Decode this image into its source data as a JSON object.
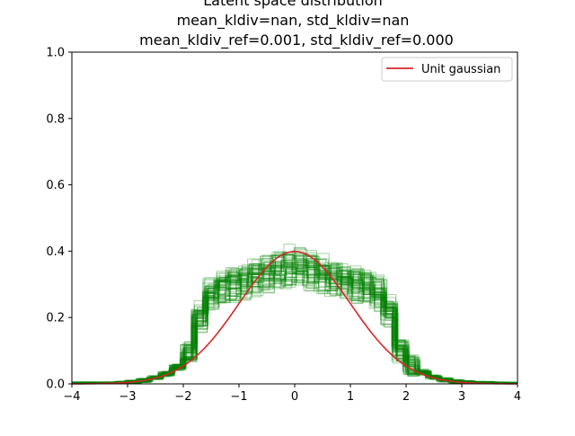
{
  "chart_data": {
    "type": "histogram",
    "title_lines": [
      "Latent space distribution",
      "mean_kldiv=nan, std_kldiv=nan",
      "mean_kldiv_ref=0.001, std_kldiv_ref=0.000"
    ],
    "xlim": [
      -4,
      4
    ],
    "ylim": [
      0,
      1.0
    ],
    "x_ticks": [
      -4,
      -3,
      -2,
      -1,
      0,
      1,
      2,
      3,
      4
    ],
    "x_tick_labels": [
      "−4",
      "−3",
      "−2",
      "−1",
      "0",
      "1",
      "2",
      "3",
      "4"
    ],
    "y_ticks": [
      0.0,
      0.2,
      0.4,
      0.6,
      0.8,
      1.0
    ],
    "y_tick_labels": [
      "0.0",
      "0.2",
      "0.4",
      "0.6",
      "0.8",
      "1.0"
    ],
    "grid": false,
    "legend_position": "top-right",
    "series": [
      {
        "name": "Unit gaussian",
        "kind": "line",
        "color": "#d62728",
        "function": "standard_normal_pdf",
        "x_range": [
          -4,
          4
        ]
      },
      {
        "kind": "step-histograms",
        "color": "#008000",
        "count_estimate": 64,
        "bins": [
          -4.0,
          -3.8,
          -3.6,
          -3.4,
          -3.2,
          -3.0,
          -2.8,
          -2.6,
          -2.4,
          -2.2,
          -2.0,
          -1.8,
          -1.6,
          -1.4,
          -1.2,
          -1.0,
          -0.8,
          -0.6,
          -0.4,
          -0.2,
          0.0,
          0.2,
          0.4,
          0.6,
          0.8,
          1.0,
          1.2,
          1.4,
          1.6,
          1.8,
          2.0,
          2.2,
          2.4,
          2.6,
          2.8,
          3.0,
          3.2,
          3.4,
          3.6,
          3.8,
          4.0
        ],
        "typical_density": [
          0.0,
          0.0,
          0.0,
          0.0,
          0.002,
          0.005,
          0.01,
          0.018,
          0.03,
          0.05,
          0.09,
          0.2,
          0.27,
          0.29,
          0.3,
          0.31,
          0.32,
          0.33,
          0.34,
          0.35,
          0.35,
          0.34,
          0.33,
          0.32,
          0.31,
          0.3,
          0.29,
          0.27,
          0.22,
          0.1,
          0.055,
          0.035,
          0.02,
          0.012,
          0.007,
          0.004,
          0.002,
          0.001,
          0.0,
          0.0
        ]
      }
    ]
  }
}
